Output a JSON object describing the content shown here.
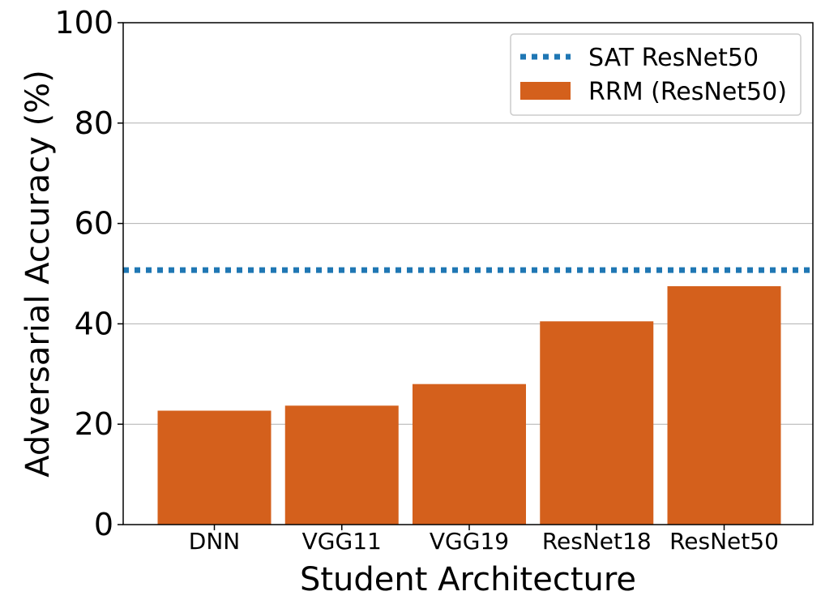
{
  "chart_data": {
    "type": "bar",
    "title": "",
    "xlabel": "Student Architecture",
    "ylabel": "Adversarial Accuracy (%)",
    "ylim": [
      0,
      100
    ],
    "yticks": [
      0,
      20,
      40,
      60,
      80,
      100
    ],
    "grid": "horizontal",
    "categories": [
      "DNN",
      "VGG11",
      "VGG19",
      "ResNet18",
      "ResNet50"
    ],
    "series": [
      {
        "name": "RRM (ResNet50)",
        "values": [
          22.7,
          23.7,
          28.0,
          40.5,
          47.5
        ],
        "color": "#d4601c"
      }
    ],
    "reference_lines": [
      {
        "name": "SAT ResNet50",
        "value": 50.7,
        "style": "dotted",
        "color": "#1f77b4"
      }
    ],
    "legend_position": "top-right"
  }
}
